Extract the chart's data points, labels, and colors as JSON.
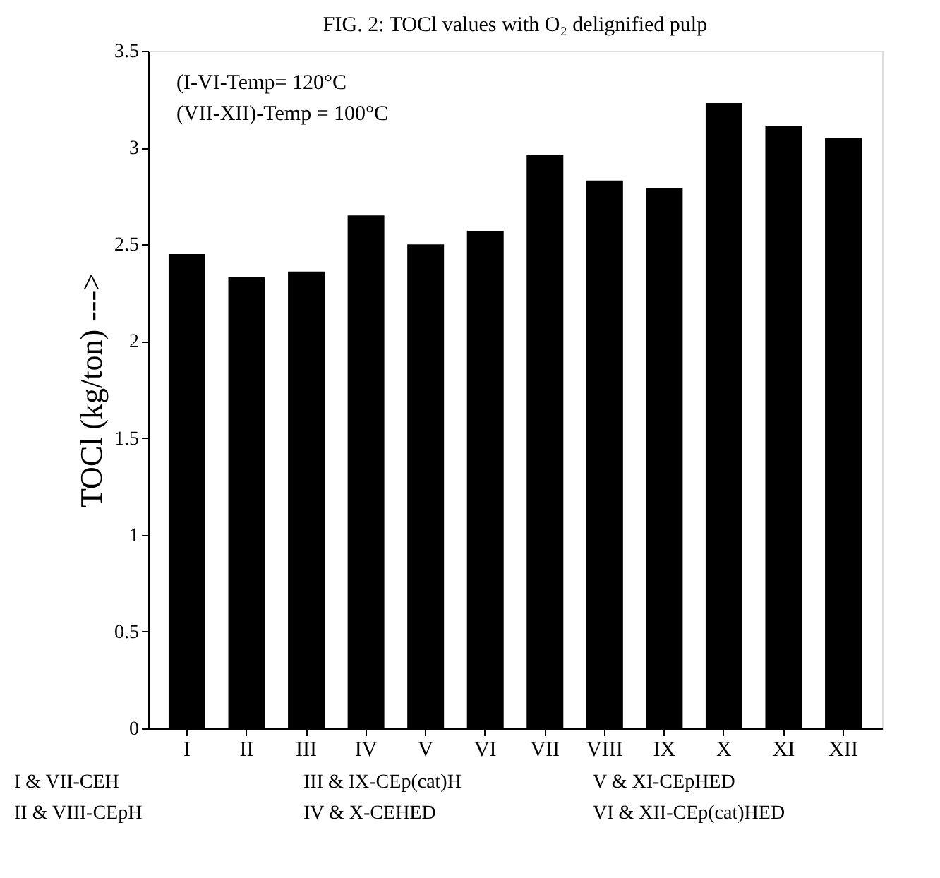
{
  "chart_data": {
    "type": "bar",
    "title": "FIG. 2: TOCl values with O₂ delignified pulp",
    "ylabel": "TOCl (kg/ton) --->",
    "categories": [
      "I",
      "II",
      "III",
      "IV",
      "V",
      "VI",
      "VII",
      "VIII",
      "IX",
      "X",
      "XI",
      "XII"
    ],
    "values": [
      2.45,
      2.33,
      2.36,
      2.65,
      2.5,
      2.57,
      2.96,
      2.83,
      2.79,
      3.23,
      3.11,
      3.05
    ],
    "color": "#000000",
    "ylim": [
      0,
      3.5
    ],
    "yticks": [
      0,
      0.5,
      1,
      1.5,
      2,
      2.5,
      3,
      3.5
    ],
    "grid": false,
    "annotations": [
      "(I-VI-Temp=  120°C",
      "(VII-XII)-Temp  =  100°C",
      "I & VII-CEH",
      "II & VIII-CEpH",
      "III & IX-CEp(cat)H",
      "IV & X-CEHED",
      "V & XI-CEpHED",
      "VI & XII-CEp(cat)HED"
    ]
  }
}
